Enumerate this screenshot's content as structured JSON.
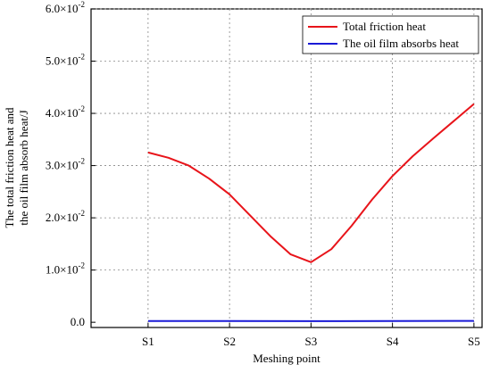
{
  "chart_data": {
    "type": "line",
    "title": "",
    "xlabel": "Meshing point",
    "ylabel_lines": [
      "The total friction heat and",
      "the oil film absorb heat/J"
    ],
    "categories": [
      "S1",
      "S2",
      "S3",
      "S4",
      "S5"
    ],
    "y_ticks": [
      0,
      0.01,
      0.02,
      0.03,
      0.04,
      0.05,
      0.06
    ],
    "y_tick_labels": [
      {
        "mantissa": "0.0",
        "exponent": ""
      },
      {
        "mantissa": "1.0",
        "exponent": "-2"
      },
      {
        "mantissa": "2.0",
        "exponent": "-2"
      },
      {
        "mantissa": "3.0",
        "exponent": "-2"
      },
      {
        "mantissa": "4.0",
        "exponent": "-2"
      },
      {
        "mantissa": "5.0",
        "exponent": "-2"
      },
      {
        "mantissa": "6.0",
        "exponent": "-2"
      }
    ],
    "ylim": [
      -0.001,
      0.06
    ],
    "xlim": [
      0.3,
      5.1
    ],
    "grid": true,
    "legend_position": "top-right",
    "series": [
      {
        "name": "Total friction heat",
        "color": "#e8141a",
        "points": [
          [
            1.0,
            0.0325
          ],
          [
            1.25,
            0.0315
          ],
          [
            1.5,
            0.03
          ],
          [
            1.75,
            0.0275
          ],
          [
            2.0,
            0.0245
          ],
          [
            2.25,
            0.0205
          ],
          [
            2.5,
            0.0165
          ],
          [
            2.75,
            0.013
          ],
          [
            3.0,
            0.0115
          ],
          [
            3.25,
            0.014
          ],
          [
            3.5,
            0.0185
          ],
          [
            3.75,
            0.0235
          ],
          [
            4.0,
            0.028
          ],
          [
            4.25,
            0.0318
          ],
          [
            4.5,
            0.0352
          ],
          [
            4.75,
            0.0385
          ],
          [
            5.0,
            0.0418
          ]
        ]
      },
      {
        "name": "The oil film absorbs heat",
        "color": "#1a1ad6",
        "points": [
          [
            1.0,
            0.00025
          ],
          [
            2.0,
            0.00025
          ],
          [
            3.0,
            0.00022
          ],
          [
            4.0,
            0.00025
          ],
          [
            5.0,
            0.00026
          ]
        ]
      }
    ]
  }
}
